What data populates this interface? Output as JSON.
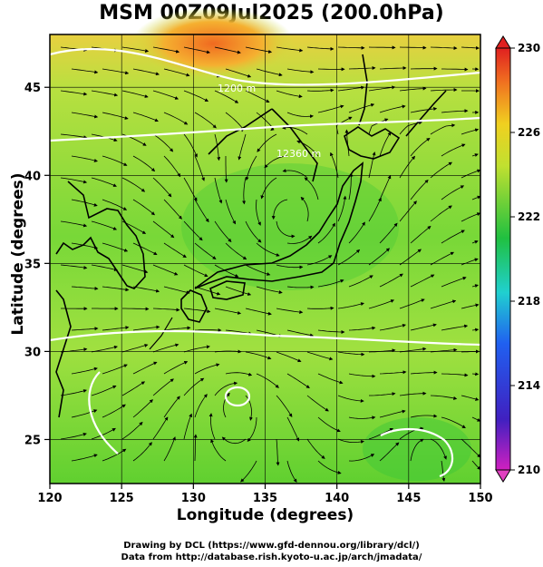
{
  "title": "MSM 00Z09Jul2025 (200.0hPa)",
  "xaxis": {
    "label": "Longitude (degrees)",
    "range": [
      120,
      150
    ],
    "ticks": [
      "120",
      "125",
      "130",
      "135",
      "140",
      "145",
      "150"
    ]
  },
  "yaxis": {
    "label": "Latitude  (degrees)",
    "range": [
      22.5,
      48
    ],
    "ticks": [
      "25",
      "30",
      "35",
      "40",
      "45"
    ]
  },
  "colorbar": {
    "ticks": [
      "210",
      "214",
      "218",
      "222",
      "226",
      "230"
    ],
    "range": [
      210,
      230
    ]
  },
  "contour_labels": [
    "1200 m",
    "12360 m"
  ],
  "credits": [
    "Drawing by DCL (https://www.gfd-dennou.org/library/dcl/)",
    "Data from http://database.rish.kyoto-u.ac.jp/arch/jmadata/"
  ],
  "colors": {
    "warm": "#f08030",
    "mid": "#b0e040",
    "cool": "#20c040",
    "contour": "#ffffff"
  }
}
